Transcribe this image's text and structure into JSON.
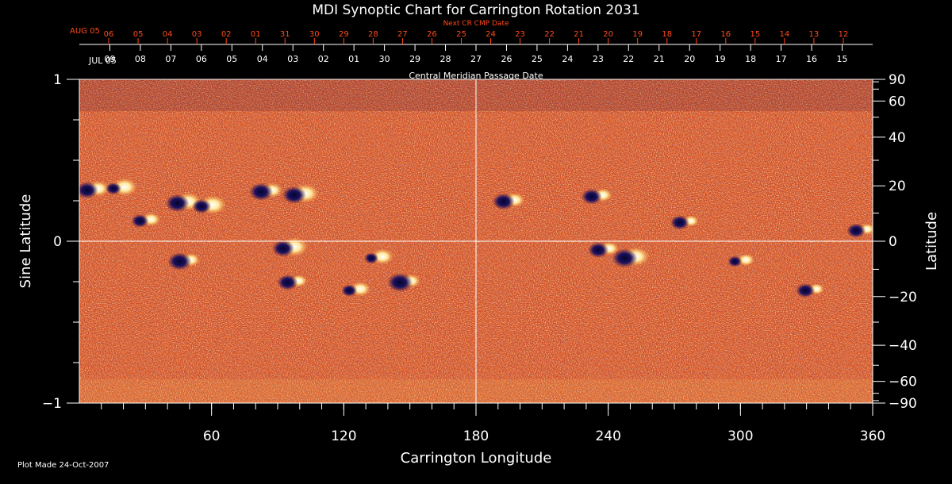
{
  "chart_data": {
    "type": "heatmap",
    "title": "MDI Synoptic Chart for Carrington Rotation 2031",
    "xlabel": "Carrington Longitude",
    "ylabel_left": "Sine Latitude",
    "ylabel_right": "Latitude",
    "xlim": [
      0,
      360
    ],
    "ylim": [
      -1,
      1
    ],
    "x_ticks": [
      60,
      120,
      180,
      240,
      300,
      360
    ],
    "x_minor_step": 10,
    "y_ticks_left": [
      {
        "v": 1,
        "label": "1"
      },
      {
        "v": 0,
        "label": "0"
      },
      {
        "v": -1,
        "label": "−1"
      }
    ],
    "y_minor_step_left": 0.25,
    "y_ticks_right": [
      {
        "deg": 90,
        "label": "90"
      },
      {
        "deg": 60,
        "label": "60"
      },
      {
        "deg": 40,
        "label": "40"
      },
      {
        "deg": 20,
        "label": "20"
      },
      {
        "deg": 0,
        "label": "0"
      },
      {
        "deg": -20,
        "label": "−20"
      },
      {
        "deg": -40,
        "label": "−40"
      },
      {
        "deg": -60,
        "label": "−60"
      },
      {
        "deg": -90,
        "label": "−90"
      }
    ],
    "y_minor_deg_right": [
      80,
      70,
      50,
      30,
      10,
      -10,
      -30,
      -50,
      -70,
      -80
    ],
    "top_axis_label": "Next CR CMP Date",
    "top_axis_start_label": "AUG 05",
    "top_axis_dates": [
      "06",
      "05",
      "04",
      "03",
      "02",
      "01",
      "31",
      "30",
      "29",
      "28",
      "27",
      "26",
      "25",
      "24",
      "23",
      "22",
      "21",
      "20",
      "19",
      "18",
      "17",
      "16",
      "15",
      "14",
      "13",
      "12"
    ],
    "bottom_axis_label": "Central Meridian Passage Date",
    "bottom_axis_start_label": "JUL 05",
    "bottom_axis_dates": [
      "09",
      "08",
      "07",
      "06",
      "05",
      "04",
      "03",
      "02",
      "01",
      "30",
      "29",
      "28",
      "27",
      "26",
      "25",
      "24",
      "23",
      "22",
      "21",
      "20",
      "19",
      "18",
      "17",
      "16",
      "15"
    ],
    "colorscale": [
      "#1a1060",
      "#7a1a00",
      "#d63c00",
      "#ff7a10",
      "#ffd060",
      "#ffffff"
    ],
    "background_color": "#e4541a",
    "grid": "center crosshair at longitude 180 and latitude 0",
    "active_regions": [
      {
        "lon": 6,
        "sinlat": 0.32,
        "pos": 0.7,
        "neg": 0.8
      },
      {
        "lon": 18,
        "sinlat": 0.33,
        "pos": 0.9,
        "neg": 0.4
      },
      {
        "lon": 30,
        "sinlat": 0.13,
        "pos": 0.5,
        "neg": 0.5
      },
      {
        "lon": 47,
        "sinlat": 0.24,
        "pos": 0.9,
        "neg": 0.9
      },
      {
        "lon": 58,
        "sinlat": 0.22,
        "pos": 1.0,
        "neg": 0.6
      },
      {
        "lon": 48,
        "sinlat": -0.12,
        "pos": 0.5,
        "neg": 0.9
      },
      {
        "lon": 85,
        "sinlat": 0.31,
        "pos": 0.6,
        "neg": 0.9
      },
      {
        "lon": 100,
        "sinlat": 0.29,
        "pos": 1.0,
        "neg": 0.9
      },
      {
        "lon": 95,
        "sinlat": -0.04,
        "pos": 1.0,
        "neg": 0.8
      },
      {
        "lon": 97,
        "sinlat": -0.25,
        "pos": 0.4,
        "neg": 0.7
      },
      {
        "lon": 125,
        "sinlat": -0.3,
        "pos": 0.6,
        "neg": 0.4
      },
      {
        "lon": 148,
        "sinlat": -0.25,
        "pos": 0.5,
        "neg": 1.0
      },
      {
        "lon": 135,
        "sinlat": -0.1,
        "pos": 0.7,
        "neg": 0.3
      },
      {
        "lon": 195,
        "sinlat": 0.25,
        "pos": 0.6,
        "neg": 0.8
      },
      {
        "lon": 235,
        "sinlat": 0.28,
        "pos": 0.5,
        "neg": 0.7
      },
      {
        "lon": 250,
        "sinlat": -0.1,
        "pos": 1.0,
        "neg": 1.0
      },
      {
        "lon": 238,
        "sinlat": -0.05,
        "pos": 0.5,
        "neg": 0.7
      },
      {
        "lon": 275,
        "sinlat": 0.12,
        "pos": 0.3,
        "neg": 0.6
      },
      {
        "lon": 300,
        "sinlat": -0.12,
        "pos": 0.4,
        "neg": 0.3
      },
      {
        "lon": 332,
        "sinlat": -0.3,
        "pos": 0.3,
        "neg": 0.6
      },
      {
        "lon": 355,
        "sinlat": 0.07,
        "pos": 0.3,
        "neg": 0.6
      }
    ]
  },
  "footer": {
    "plot_made": "Plot Made 24-Oct-2007"
  }
}
